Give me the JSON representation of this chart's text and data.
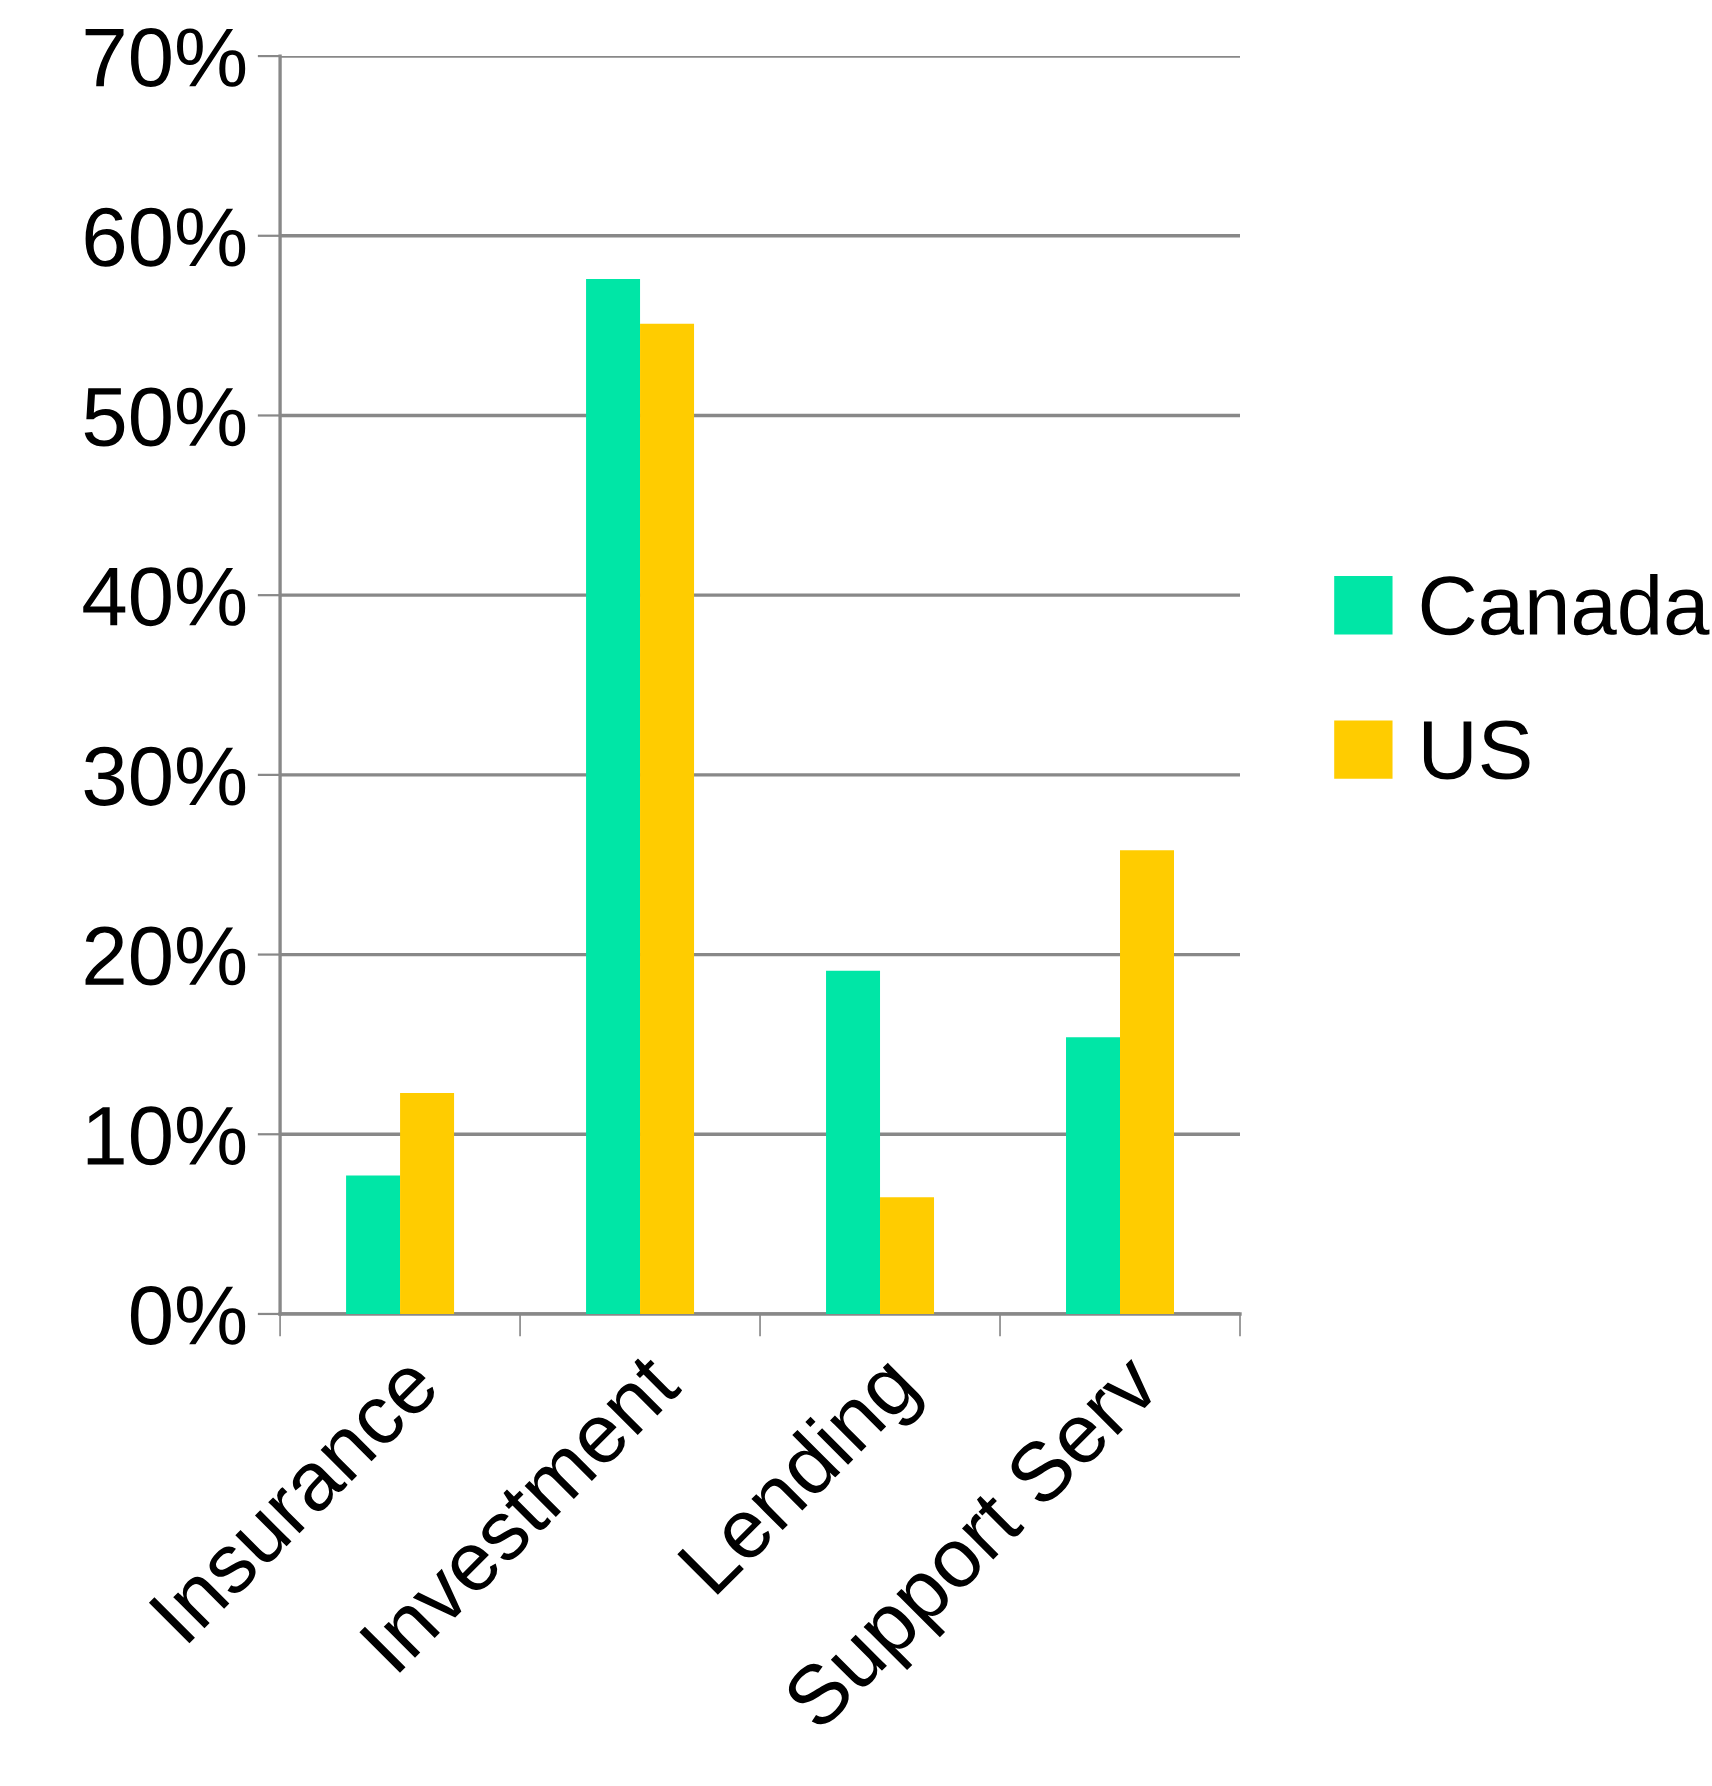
{
  "chart_data": {
    "type": "bar",
    "categories": [
      "Insurance",
      "Investment",
      "Lending",
      "Support Serv"
    ],
    "series": [
      {
        "name": "Canada",
        "color": "#00e6a6",
        "values": [
          7.7,
          57.6,
          19.1,
          15.4
        ]
      },
      {
        "name": "US",
        "color": "#ffcc00",
        "values": [
          12.3,
          55.1,
          6.5,
          25.8
        ]
      }
    ],
    "ylim": [
      0,
      70
    ],
    "yticks": [
      {
        "value": 0,
        "label": "0%"
      },
      {
        "value": 10,
        "label": "10%"
      },
      {
        "value": 20,
        "label": "20%"
      },
      {
        "value": 30,
        "label": "30%"
      },
      {
        "value": 40,
        "label": "40%"
      },
      {
        "value": 50,
        "label": "50%"
      },
      {
        "value": 60,
        "label": "60%"
      },
      {
        "value": 70,
        "label": "70%"
      }
    ],
    "grid": "y",
    "legend": "right"
  }
}
